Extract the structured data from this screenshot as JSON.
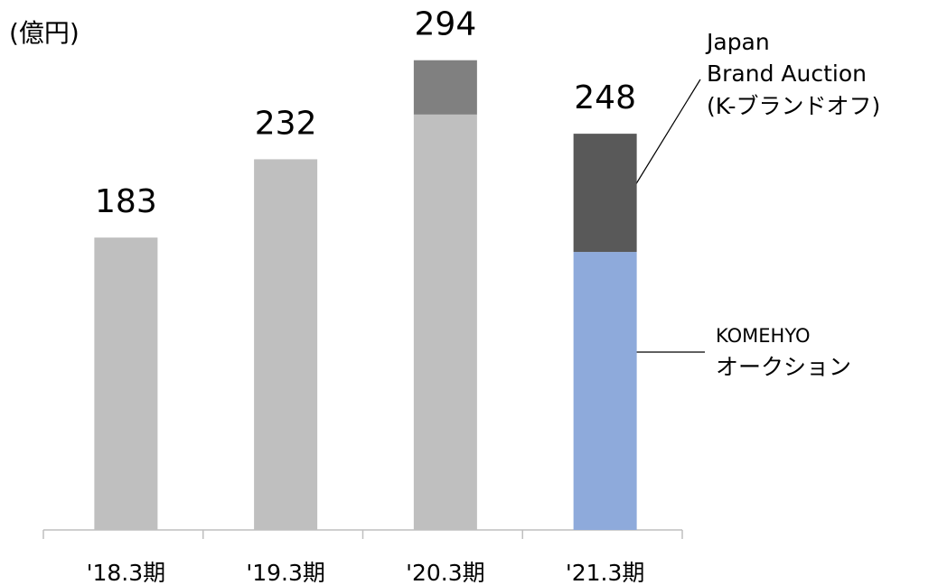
{
  "chart_data": {
    "type": "bar",
    "stacked": true,
    "y_label": "(億円)",
    "categories": [
      "'18.3期",
      "'19.3期",
      "'20.3期",
      "'21.3期"
    ],
    "series": [
      {
        "values": [
          183,
          232,
          260,
          174
        ],
        "colors": [
          "#bfbfbf",
          "#bfbfbf",
          "#bfbfbf",
          "#8eaadb"
        ],
        "label_lines": [
          "KOMEHYO",
          "オークション"
        ]
      },
      {
        "values": [
          null,
          null,
          34,
          74
        ],
        "colors": [
          null,
          null,
          "#808080",
          "#595959"
        ],
        "label_lines": [
          "Japan",
          "Brand Auction",
          "(K-ブランドオフ)"
        ]
      }
    ],
    "totals": [
      183,
      232,
      294,
      248
    ],
    "ylim": [
      0,
      330
    ]
  }
}
